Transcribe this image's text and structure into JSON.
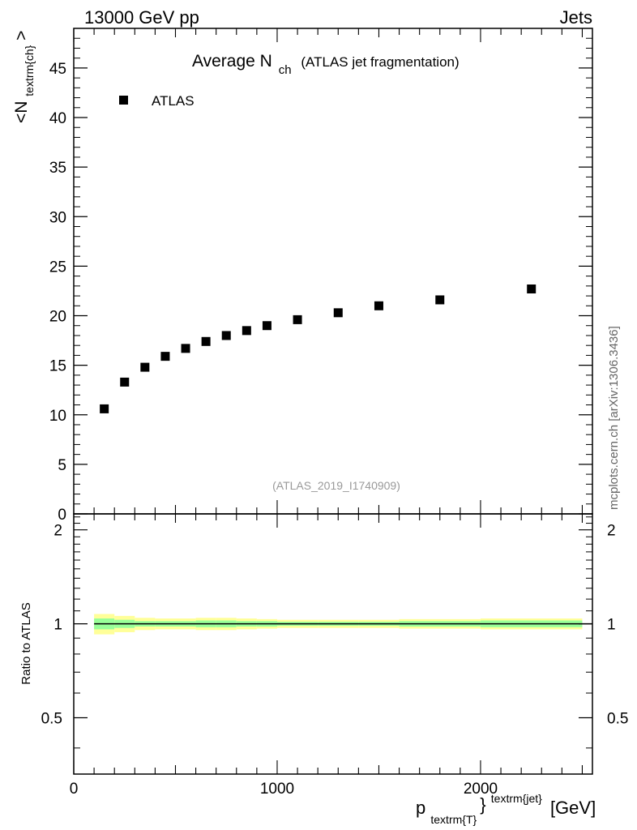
{
  "header": {
    "left": "13000 GeV pp",
    "right": "Jets"
  },
  "side_label": "mcplots.cern.ch [arXiv:1306.3436]",
  "chart_data": [
    {
      "type": "scatter",
      "title_main": "Average N",
      "title_sub": "ch",
      "title_rest": "(ATLAS jet fragmentation)",
      "ylabel_main": "<N",
      "ylabel_sub": "textrm{ch}",
      "ylabel_end": ">",
      "watermark": "(ATLAS_2019_I1740909)",
      "legend_placement": "top-left",
      "xlim": [
        0,
        2550
      ],
      "ylim": [
        0,
        49
      ],
      "y_ticks": [
        0,
        5,
        10,
        15,
        20,
        25,
        30,
        35,
        40,
        45
      ],
      "y_tick_labels": [
        "0",
        "5",
        "10",
        "15",
        "20",
        "25",
        "30",
        "35",
        "40",
        "45"
      ],
      "series": [
        {
          "name": "ATLAS",
          "x": [
            150,
            250,
            350,
            450,
            550,
            650,
            750,
            850,
            950,
            1100,
            1300,
            1500,
            1800,
            2250
          ],
          "y": [
            10.6,
            13.3,
            14.8,
            15.9,
            16.7,
            17.4,
            18.0,
            18.5,
            19.0,
            19.6,
            20.3,
            21.0,
            21.6,
            22.7
          ]
        }
      ]
    },
    {
      "type": "area",
      "ylabel": "Ratio to ATLAS",
      "xlim": [
        0,
        2550
      ],
      "ylim": [
        0.33,
        2.25
      ],
      "y_ticks": [
        0.5,
        1,
        2
      ],
      "y_tick_labels": [
        "0.5",
        "1",
        "2"
      ],
      "x_ticks": [
        0,
        1000,
        2000
      ],
      "x_tick_labels": [
        "0",
        "1000",
        "2000"
      ],
      "xlabel_main": "p",
      "xlabel_sub": "textrm{T}",
      "xlabel_sup": "textrm{jet}",
      "xlabel_unit": "[GeV]",
      "reference_line": 1,
      "bands": {
        "edges": [
          100,
          200,
          300,
          400,
          500,
          600,
          700,
          800,
          900,
          1000,
          1200,
          1400,
          1600,
          2000,
          2500
        ],
        "yellow_halfwidth": [
          0.075,
          0.06,
          0.045,
          0.04,
          0.04,
          0.045,
          0.045,
          0.04,
          0.035,
          0.03,
          0.03,
          0.03,
          0.035,
          0.04
        ],
        "green_halfwidth": [
          0.04,
          0.03,
          0.02,
          0.02,
          0.02,
          0.025,
          0.025,
          0.02,
          0.02,
          0.015,
          0.015,
          0.015,
          0.02,
          0.025
        ]
      },
      "colors": {
        "yellow": "#ffff99",
        "green": "#99ff99",
        "line": "#000000"
      }
    }
  ]
}
